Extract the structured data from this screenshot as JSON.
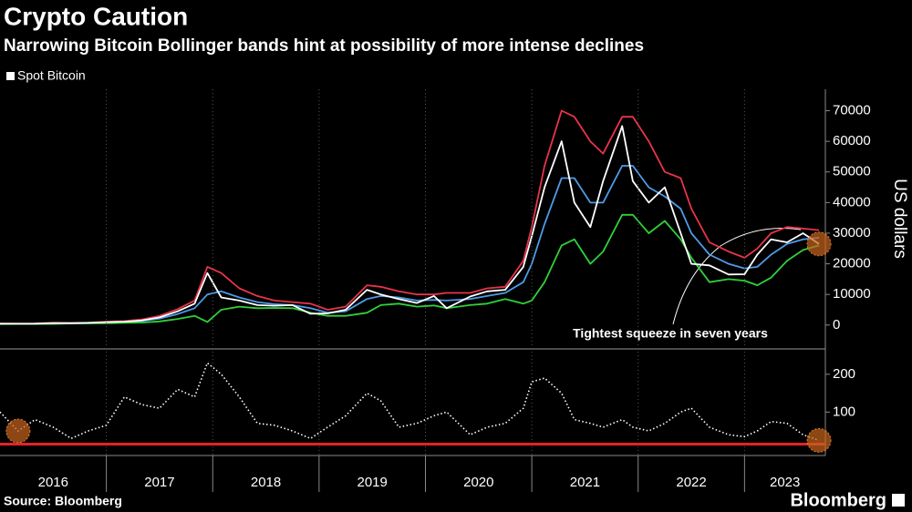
{
  "chart_data": [
    {
      "type": "line",
      "title": "Crypto Caution",
      "subtitle": "Narrowing Bitcoin Bollinger bands hint at possibility of more intense declines",
      "y_label": "US dollars",
      "annotation": "Tightest squeeze in seven years",
      "xlim": [
        2016,
        2023.76
      ],
      "ylim": [
        -7500,
        77000
      ],
      "yticks": [
        0,
        10000,
        20000,
        30000,
        40000,
        50000,
        60000,
        70000
      ],
      "x": [
        2016.0,
        2016.17,
        2016.33,
        2016.5,
        2016.67,
        2016.83,
        2017.0,
        2017.17,
        2017.33,
        2017.5,
        2017.67,
        2017.83,
        2017.95,
        2018.08,
        2018.25,
        2018.42,
        2018.58,
        2018.75,
        2018.92,
        2019.08,
        2019.25,
        2019.45,
        2019.58,
        2019.75,
        2019.92,
        2020.08,
        2020.2,
        2020.42,
        2020.58,
        2020.75,
        2020.92,
        2021.0,
        2021.12,
        2021.28,
        2021.4,
        2021.55,
        2021.67,
        2021.85,
        2021.95,
        2022.1,
        2022.25,
        2022.4,
        2022.5,
        2022.67,
        2022.85,
        2023.0,
        2023.12,
        2023.25,
        2023.4,
        2023.55,
        2023.7
      ],
      "series": [
        {
          "color": "#e8344a",
          "values": [
            500,
            500,
            520,
            750,
            720,
            780,
            1100,
            1300,
            1800,
            3000,
            5200,
            8000,
            19000,
            17000,
            12000,
            9500,
            8000,
            7500,
            7000,
            5000,
            6000,
            13000,
            12500,
            11000,
            10000,
            10000,
            10500,
            10500,
            12000,
            12500,
            21000,
            32000,
            52000,
            70000,
            68000,
            60000,
            56000,
            68000,
            68000,
            60000,
            50000,
            48000,
            38000,
            27000,
            24000,
            22000,
            25000,
            30000,
            32000,
            31500,
            31000
          ]
        },
        {
          "color": "#4f9be8",
          "values": [
            420,
            430,
            440,
            550,
            620,
            660,
            850,
            1000,
            1300,
            2100,
            3600,
            5500,
            10000,
            11000,
            9000,
            7500,
            6800,
            6500,
            5500,
            4000,
            4500,
            8500,
            9500,
            9000,
            8000,
            8200,
            8000,
            8500,
            9500,
            10500,
            14000,
            20000,
            33000,
            48000,
            48000,
            40000,
            40000,
            52000,
            52000,
            45000,
            42000,
            38000,
            30000,
            23000,
            20000,
            18500,
            19000,
            23000,
            26500,
            28000,
            28500
          ]
        },
        {
          "color": "#2fd13a",
          "values": [
            340,
            360,
            360,
            350,
            520,
            540,
            600,
            700,
            800,
            1200,
            2000,
            3000,
            1000,
            5000,
            6000,
            5500,
            5600,
            5500,
            4000,
            3000,
            3000,
            4000,
            6500,
            7000,
            6000,
            6400,
            5500,
            6500,
            7000,
            8500,
            7000,
            8000,
            14000,
            26000,
            28000,
            20000,
            24000,
            36000,
            36000,
            30000,
            34000,
            28000,
            22000,
            14000,
            15000,
            14500,
            13000,
            15500,
            21000,
            24500,
            26000
          ]
        },
        {
          "name": "Spot Bitcoin",
          "color": "#ffffff",
          "values": [
            430,
            420,
            450,
            650,
            600,
            700,
            950,
            1100,
            1500,
            2500,
            4500,
            7000,
            17000,
            9000,
            8000,
            6500,
            6300,
            6500,
            3700,
            3800,
            5000,
            11500,
            10000,
            8500,
            7200,
            9500,
            5500,
            9300,
            11000,
            11500,
            19000,
            29000,
            45000,
            60000,
            40000,
            32000,
            47000,
            65000,
            47000,
            40000,
            45000,
            30000,
            20000,
            19500,
            16500,
            16600,
            23000,
            28000,
            27000,
            30000,
            26500
          ]
        }
      ]
    },
    {
      "type": "line",
      "xlim": [
        2016,
        2023.76
      ],
      "ylim": [
        -15,
        255
      ],
      "yticks": [
        100,
        200
      ],
      "xticks": [
        2017,
        2018,
        2019,
        2020,
        2021,
        2022,
        2023
      ],
      "x_labels": [
        {
          "value": 2016.5,
          "label": "2016"
        },
        {
          "value": 2017.5,
          "label": "2017"
        },
        {
          "value": 2018.5,
          "label": "2018"
        },
        {
          "value": 2019.5,
          "label": "2019"
        },
        {
          "value": 2020.5,
          "label": "2020"
        },
        {
          "value": 2021.5,
          "label": "2021"
        },
        {
          "value": 2022.5,
          "label": "2022"
        },
        {
          "value": 2023.38,
          "label": "2023"
        }
      ],
      "reference_line": {
        "value": 15,
        "color": "#e8202a"
      },
      "x": [
        2016.0,
        2016.17,
        2016.33,
        2016.5,
        2016.67,
        2016.83,
        2017.0,
        2017.17,
        2017.33,
        2017.5,
        2017.67,
        2017.83,
        2017.95,
        2018.08,
        2018.25,
        2018.42,
        2018.58,
        2018.75,
        2018.92,
        2019.08,
        2019.25,
        2019.45,
        2019.58,
        2019.75,
        2019.92,
        2020.08,
        2020.2,
        2020.42,
        2020.58,
        2020.75,
        2020.92,
        2021.0,
        2021.12,
        2021.28,
        2021.4,
        2021.55,
        2021.67,
        2021.85,
        2021.95,
        2022.1,
        2022.25,
        2022.4,
        2022.5,
        2022.67,
        2022.85,
        2023.0,
        2023.12,
        2023.25,
        2023.4,
        2023.55,
        2023.7
      ],
      "series": [
        {
          "color": "#ffffff",
          "dash": true,
          "values": [
            100,
            50,
            80,
            60,
            30,
            50,
            65,
            140,
            120,
            110,
            160,
            140,
            230,
            200,
            140,
            70,
            65,
            50,
            30,
            60,
            90,
            150,
            130,
            60,
            70,
            90,
            100,
            40,
            60,
            70,
            110,
            180,
            190,
            150,
            80,
            70,
            60,
            80,
            60,
            50,
            70,
            100,
            110,
            60,
            40,
            35,
            50,
            75,
            70,
            40,
            25
          ]
        }
      ],
      "source": "Source: Bloomberg",
      "brand": "Bloomberg"
    }
  ]
}
